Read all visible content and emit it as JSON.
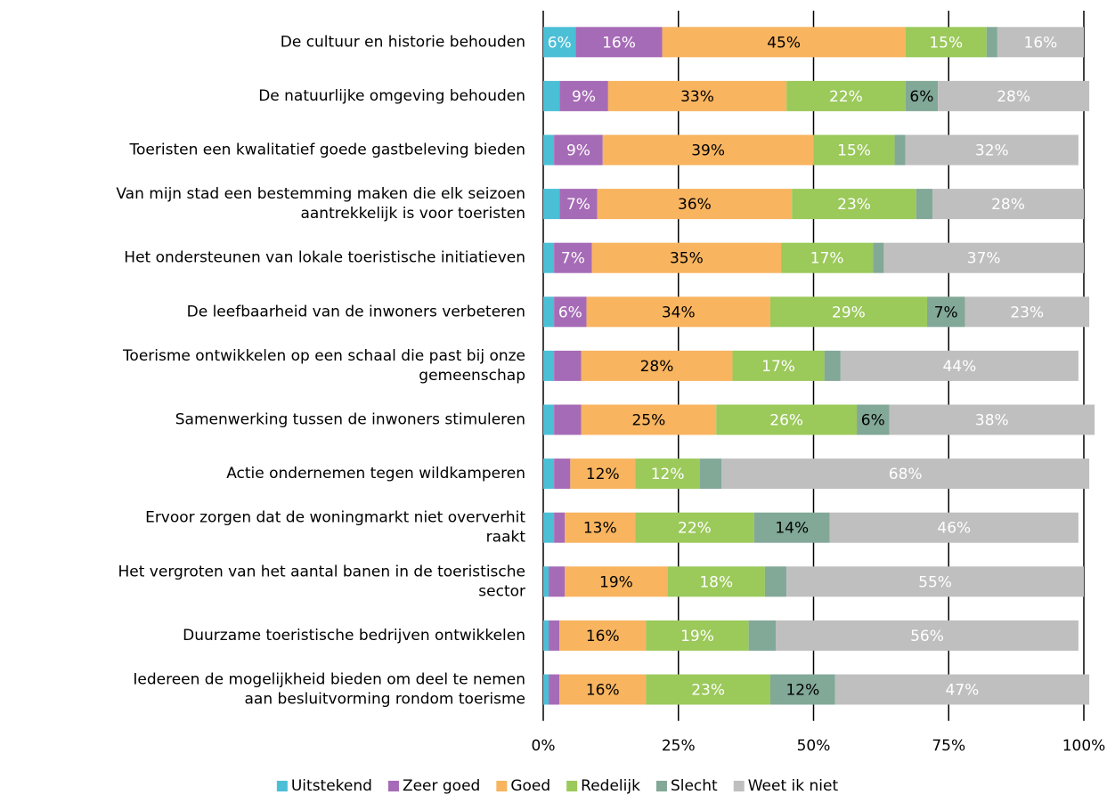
{
  "chart_data": {
    "type": "stacked_bar_horizontal",
    "categories": [
      [
        "De cultuur en historie behouden"
      ],
      [
        "De natuurlijke omgeving behouden"
      ],
      [
        "Toeristen een kwalitatief goede gastbeleving bieden"
      ],
      [
        "Van mijn stad een bestemming maken die elk seizoen",
        "aantrekkelijk is voor toeristen"
      ],
      [
        "Het ondersteunen van lokale toeristische initiatieven"
      ],
      [
        "De leefbaarheid van de inwoners verbeteren"
      ],
      [
        "Toerisme ontwikkelen op een schaal die past bij onze",
        "gemeenschap"
      ],
      [
        "Samenwerking tussen de inwoners stimuleren"
      ],
      [
        "Actie ondernemen tegen wildkamperen"
      ],
      [
        "Ervoor zorgen dat de woningmarkt niet oververhit",
        "raakt"
      ],
      [
        "Het vergroten van het aantal banen in de toeristische",
        "sector"
      ],
      [
        "Duurzame toeristische bedrijven ontwikkelen"
      ],
      [
        "Iedereen de mogelijkheid bieden om deel te nemen",
        "aan besluitvorming rondom toerisme"
      ]
    ],
    "series": [
      {
        "name": "Uitstekend",
        "color": "#4bbfd6",
        "label_color": "#ffffff",
        "values": [
          6,
          3,
          2,
          3,
          2,
          2,
          2,
          2,
          2,
          2,
          1,
          1,
          1
        ],
        "value_labels": [
          "6%",
          null,
          null,
          null,
          null,
          null,
          null,
          null,
          null,
          null,
          null,
          null,
          null
        ]
      },
      {
        "name": "Zeer goed",
        "color": "#a66bb6",
        "label_color": "#ffffff",
        "values": [
          16,
          9,
          9,
          7,
          7,
          6,
          5,
          5,
          3,
          2,
          3,
          2,
          2
        ],
        "value_labels": [
          "16%",
          "9%",
          "9%",
          "7%",
          "7%",
          "6%",
          null,
          null,
          null,
          null,
          null,
          null,
          null
        ]
      },
      {
        "name": "Goed",
        "color": "#f8b45f",
        "label_color": "#000000",
        "values": [
          45,
          33,
          39,
          36,
          35,
          34,
          28,
          25,
          12,
          13,
          19,
          16,
          16
        ],
        "value_labels": [
          "45%",
          "33%",
          "39%",
          "36%",
          "35%",
          "34%",
          "28%",
          "25%",
          "12%",
          "13%",
          "19%",
          "16%",
          "16%"
        ]
      },
      {
        "name": "Redelijk",
        "color": "#9bc95a",
        "label_color": "#ffffff",
        "values": [
          15,
          22,
          15,
          23,
          17,
          29,
          17,
          26,
          12,
          22,
          18,
          19,
          23
        ],
        "value_labels": [
          "15%",
          "22%",
          "15%",
          "23%",
          "17%",
          "29%",
          "17%",
          "26%",
          "12%",
          "22%",
          "18%",
          "19%",
          "23%"
        ]
      },
      {
        "name": "Slecht",
        "color": "#82a898",
        "label_color": "#000000",
        "values": [
          2,
          6,
          2,
          3,
          2,
          7,
          3,
          6,
          4,
          14,
          4,
          5,
          12
        ],
        "value_labels": [
          null,
          "6%",
          null,
          null,
          null,
          "7%",
          null,
          "6%",
          null,
          "14%",
          null,
          null,
          "12%"
        ]
      },
      {
        "name": "Weet ik niet",
        "color": "#bfbfbf",
        "label_color": "#ffffff",
        "values": [
          16,
          28,
          32,
          28,
          37,
          23,
          44,
          38,
          68,
          46,
          55,
          56,
          47
        ],
        "value_labels": [
          "16%",
          "28%",
          "32%",
          "28%",
          "37%",
          "23%",
          "44%",
          "38%",
          "68%",
          "46%",
          "55%",
          "56%",
          "47%"
        ]
      }
    ],
    "xlim": [
      0,
      100
    ],
    "xticks": [
      {
        "value": 0,
        "label": "0%"
      },
      {
        "value": 25,
        "label": "25%"
      },
      {
        "value": 50,
        "label": "50%"
      },
      {
        "value": 75,
        "label": "75%"
      },
      {
        "value": 100,
        "label": "100%"
      }
    ],
    "grid": true,
    "legend": "bottom"
  }
}
